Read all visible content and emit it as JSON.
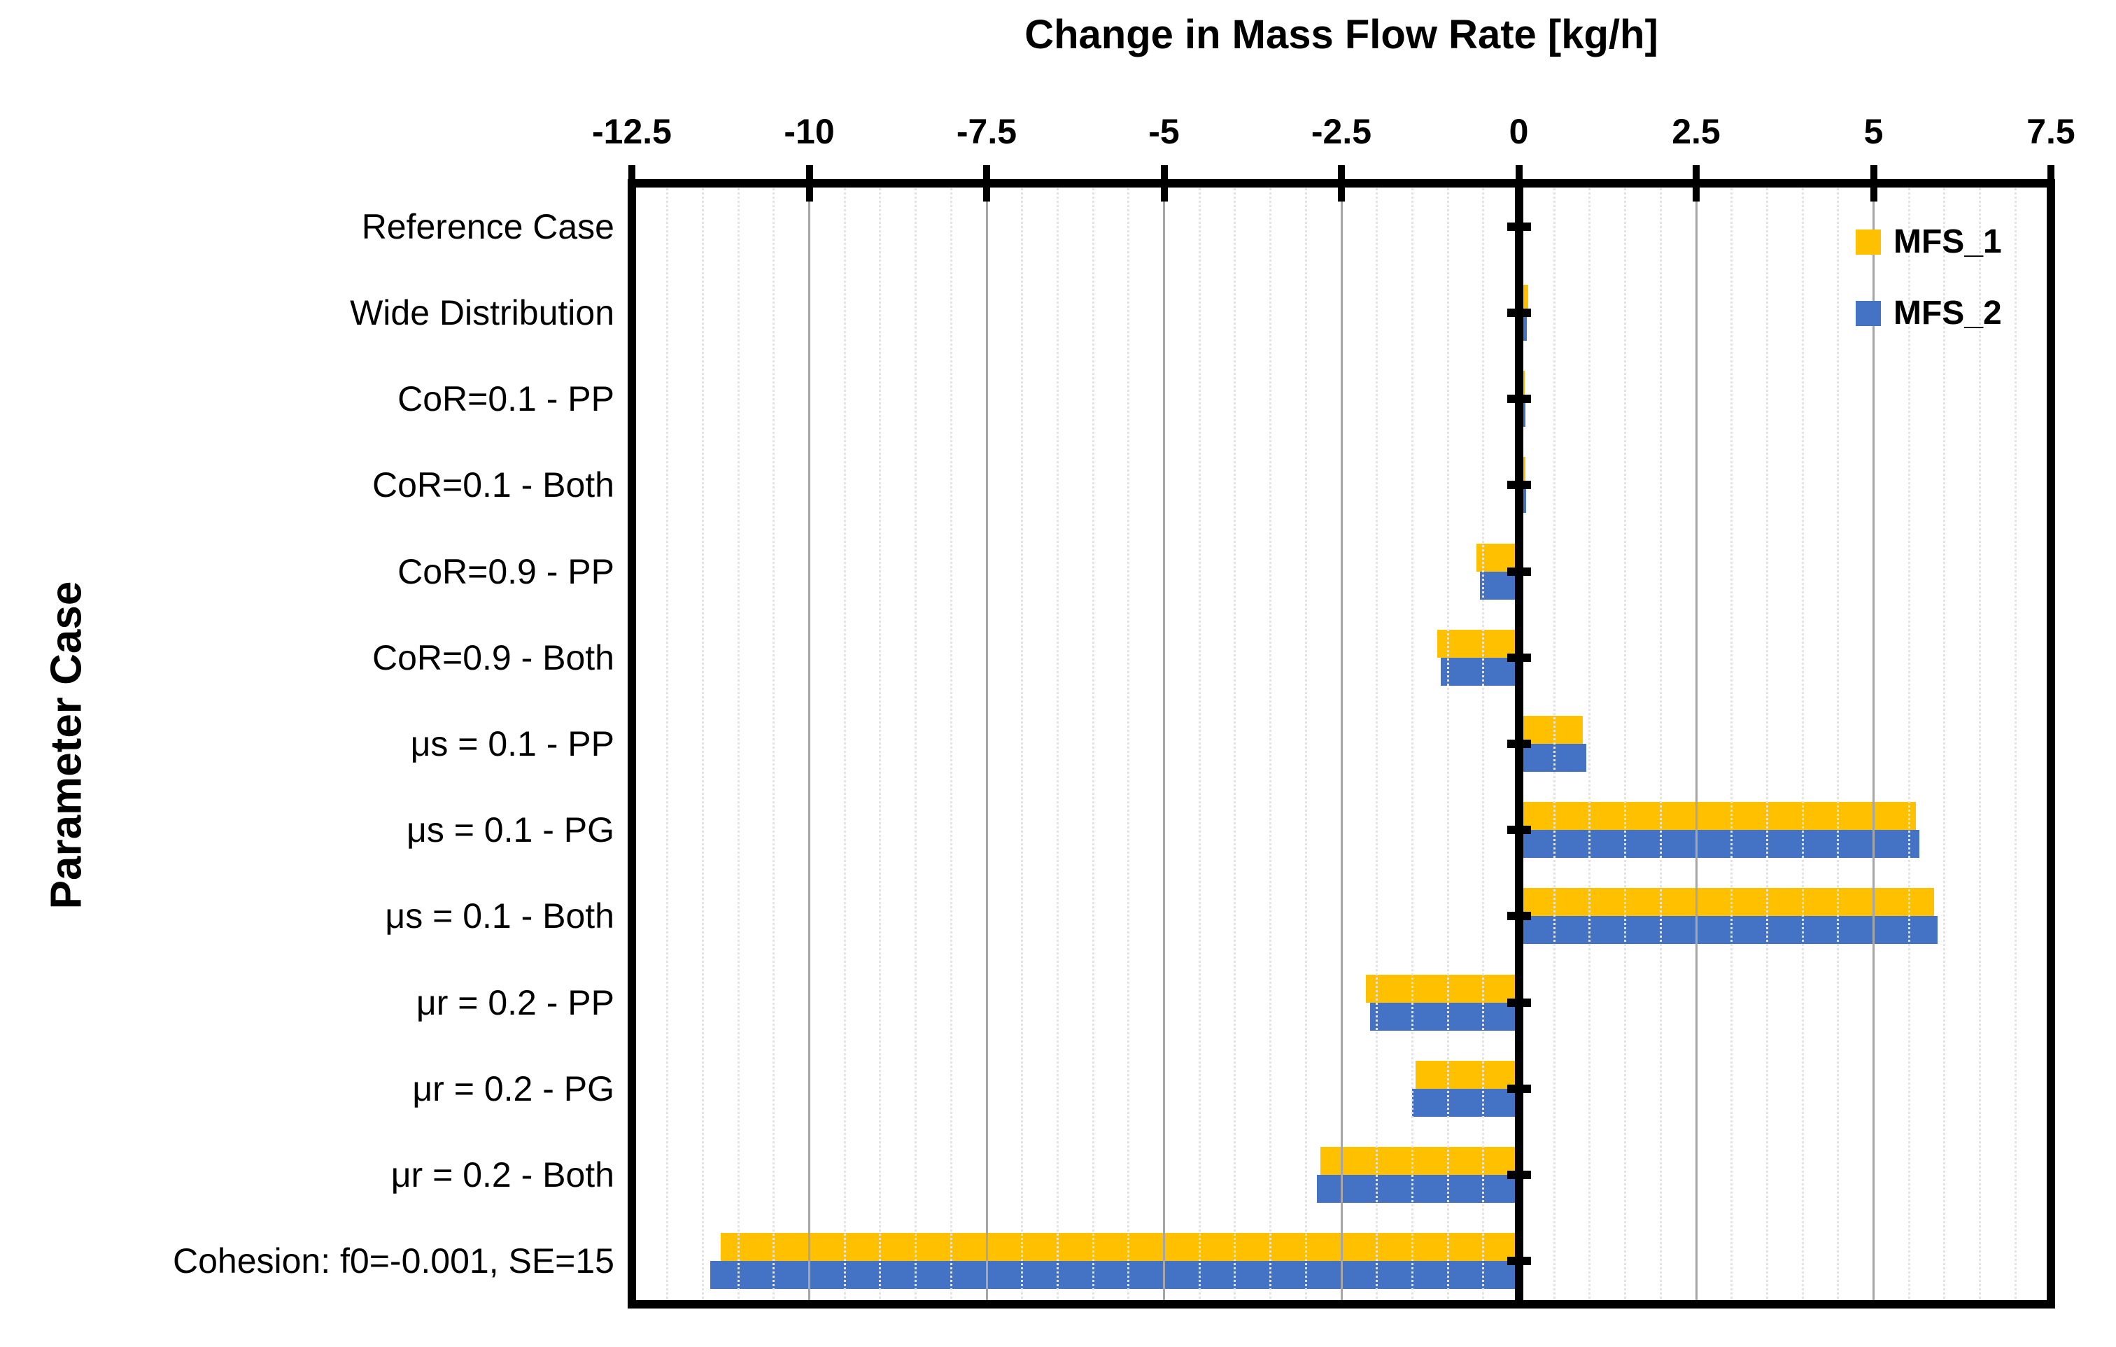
{
  "chart_data": {
    "type": "bar",
    "orientation": "horizontal",
    "title": "Change in Mass Flow Rate [kg/h]",
    "xlabel": "Change in Mass Flow Rate [kg/h]",
    "ylabel": "Parameter Case",
    "xlim": [
      -12.5,
      7.5
    ],
    "x_ticks": [
      -12.5,
      -10,
      -7.5,
      -5,
      -2.5,
      0,
      2.5,
      5,
      7.5
    ],
    "x_tick_labels": [
      "-12.5",
      "-10",
      "-7.5",
      "-5",
      "-2.5",
      "0",
      "2.5",
      "5",
      "7.5"
    ],
    "minor_grid_step": 0.5,
    "major_grid_step": 2.5,
    "grid": "on",
    "legend_position": "inside-top-right",
    "categories": [
      "Reference Case",
      "Wide Distribution",
      "CoR=0.1 - PP",
      "CoR=0.1 - Both",
      "CoR=0.9 - PP",
      "CoR=0.9 - Both",
      "μs = 0.1 - PP",
      "μs = 0.1 - PG",
      "μs = 0.1 - Both",
      "μr = 0.2 - PP",
      "μr = 0.2 - PG",
      "μr = 0.2 - Both",
      "Cohesion: f0=-0.001, SE=15"
    ],
    "series": [
      {
        "name": "MFS_1",
        "color": "#FFC000",
        "values": [
          0,
          0.13,
          0.08,
          0.09,
          -0.6,
          -1.15,
          0.9,
          5.6,
          5.85,
          -2.15,
          -1.45,
          -2.8,
          -11.25
        ]
      },
      {
        "name": "MFS_2",
        "color": "#4472C4",
        "values": [
          0,
          0.11,
          0.09,
          0.1,
          -0.55,
          -1.1,
          0.95,
          5.65,
          5.9,
          -2.1,
          -1.5,
          -2.85,
          -11.4
        ]
      }
    ]
  },
  "colors": {
    "background": "#FFFFFF",
    "axis": "#000000",
    "major_grid": "#A6A6A6",
    "minor_grid": "#E3E3E3",
    "text": "#000000"
  }
}
